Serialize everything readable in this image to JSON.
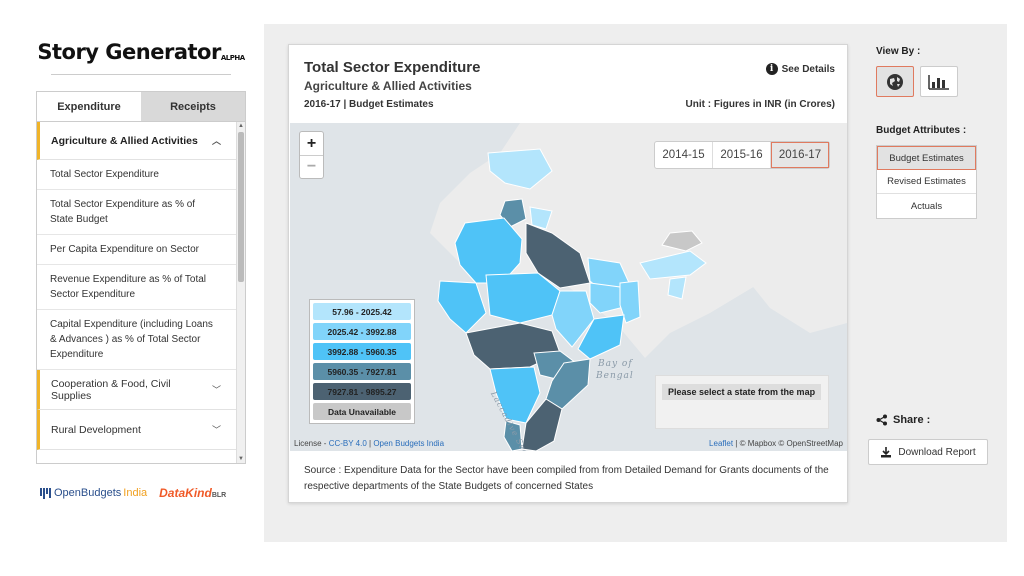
{
  "app": {
    "title": "Story Generator",
    "badge": "ALPHA"
  },
  "sidebar": {
    "tabs": [
      {
        "label": "Expenditure",
        "active": true
      },
      {
        "label": "Receipts",
        "active": false
      }
    ],
    "active_sector": "Agriculture & Allied Activities",
    "indicators": [
      "Total Sector Expenditure",
      "Total Sector Expenditure as % of State Budget",
      "Per Capita Expenditure on Sector",
      "Revenue Expenditure as % of Total Sector Expenditure",
      "Capital Expenditure (including Loans & Advances ) as % of Total Sector Expenditure"
    ],
    "other_sectors": [
      "Cooperation & Food, Civil Supplies",
      "Rural Development"
    ]
  },
  "logos": {
    "obi_open": "OpenBudgets",
    "obi_india": "India",
    "datakind": "DataKind",
    "datakind_suffix": "BLR"
  },
  "card": {
    "title": "Total Sector Expenditure",
    "subtitle": "Agriculture & Allied Activities",
    "year_info": "2016-17 | Budget Estimates",
    "unit": "Unit : Figures in INR (in Crores)",
    "see_details": "See Details",
    "source": "Source : Expenditure Data for the Sector have been compiled from from Detailed Demand for Grants documents of the respective departments of the State Budgets of concerned States"
  },
  "map": {
    "zoom_in": "+",
    "zoom_out": "−",
    "years": [
      {
        "label": "2014-15",
        "active": false
      },
      {
        "label": "2015-16",
        "active": false
      },
      {
        "label": "2016-17",
        "active": true
      }
    ],
    "legend": [
      {
        "label": "57.96 - 2025.42",
        "color": "#b3e5fc"
      },
      {
        "label": "2025.42 - 3992.88",
        "color": "#81d4fa"
      },
      {
        "label": "3992.88 - 5960.35",
        "color": "#4fc3f7"
      },
      {
        "label": "5960.35 - 7927.81",
        "color": "#5b8fa8"
      },
      {
        "label": "7927.81 - 9895.27",
        "color": "#4c6272"
      },
      {
        "label": "Data Unavailable",
        "color": "#c8c8c8"
      }
    ],
    "state_prompt": "Please select a state from the map",
    "bay_label_1": "Bay of",
    "bay_label_2": "Bengal",
    "sea_label": "Laccadive Sea",
    "attribution_license": "License - ",
    "attribution_cc": "CC-BY 4.0",
    "attribution_sep": " | ",
    "attribution_obi": "Open Budgets India",
    "attribution_leaflet": "Leaflet",
    "attribution_mapbox": " | © Mapbox © OpenStreetMap"
  },
  "right_panel": {
    "view_by_label": "View By :",
    "view_options": [
      {
        "icon": "globe-icon",
        "active": true
      },
      {
        "icon": "bar-chart-icon",
        "active": false
      }
    ],
    "budget_attributes_label": "Budget Attributes :",
    "budget_options": [
      {
        "label": "Budget Estimates",
        "active": true
      },
      {
        "label": "Revised Estimates",
        "active": false
      },
      {
        "label": "Actuals",
        "active": false
      }
    ],
    "share_label": "Share :",
    "download_label": "Download Report"
  }
}
